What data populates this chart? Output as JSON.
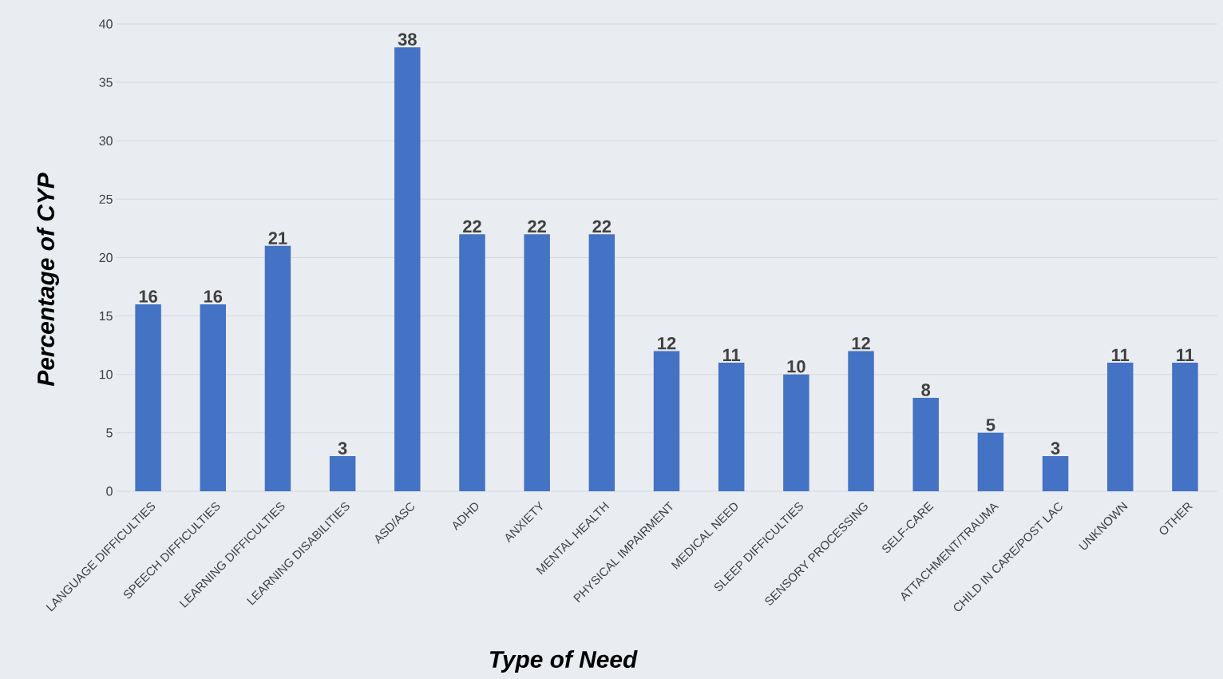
{
  "chart_data": {
    "type": "bar",
    "xlabel": "Type of Need",
    "ylabel": "Percentage of CYP",
    "categories": [
      "LANGUAGE DIFFICULTIES",
      "SPEECH DIFFICULTIES",
      "LEARNING DIFFICULTIES",
      "LEARNING DISABILITIES",
      "ASD/ASC",
      "ADHD",
      "ANXIETY",
      "MENTAL HEALTH",
      "PHYSICAL IMPAIRMENT",
      "MEDICAL NEED",
      "SLEEP DIFFICULTIES",
      "SENSORY PROCESSING",
      "SELF-CARE",
      "ATTACHMENT/TRAUMA",
      "CHILD IN CARE/POST LAC",
      "UNKNOWN",
      "OTHER"
    ],
    "values": [
      16,
      16,
      21,
      3,
      38,
      22,
      22,
      22,
      12,
      11,
      10,
      12,
      8,
      5,
      3,
      11,
      11
    ],
    "color": "#4472c4",
    "ylim": [
      0,
      40
    ],
    "yticks": [
      0,
      5,
      10,
      15,
      20,
      25,
      30,
      35,
      40
    ],
    "grid": "y",
    "data_labels": true
  }
}
